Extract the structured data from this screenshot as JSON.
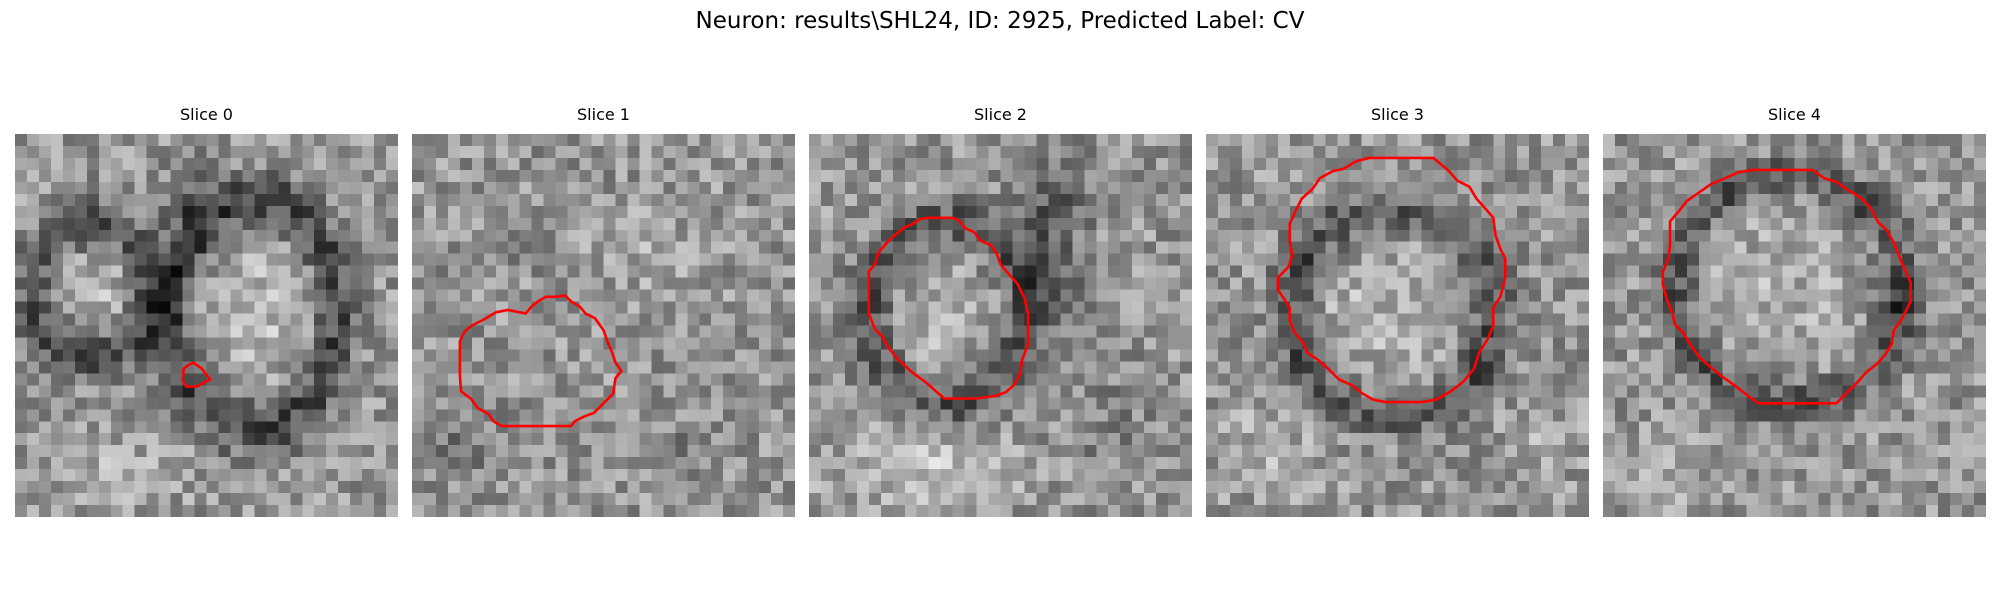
{
  "figure": {
    "title": "Neuron: results\\SHL24, ID: 2925, Predicted Label: CV"
  },
  "colors": {
    "contour": "#ff0000",
    "background": "#ffffff",
    "image_dark": "#0a0a0a",
    "image_light": "#f2f2f2"
  },
  "slices": [
    {
      "title": "Slice 0"
    },
    {
      "title": "Slice 1"
    },
    {
      "title": "Slice 2"
    },
    {
      "title": "Slice 3"
    },
    {
      "title": "Slice 4"
    }
  ]
}
